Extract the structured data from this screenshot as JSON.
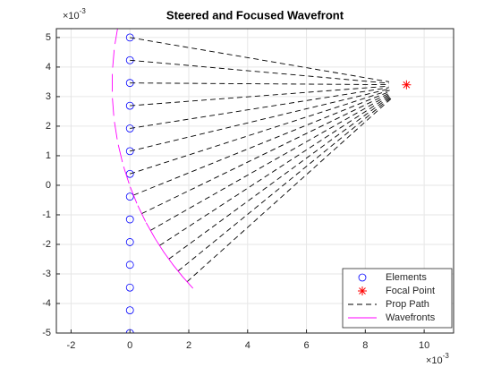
{
  "chart_data": {
    "type": "line",
    "title": "Steered and Focused Wavefront",
    "x_multiplier": "×10",
    "x_exponent": "-3",
    "y_multiplier": "×10",
    "y_exponent": "-3",
    "xlim": [
      -2.5,
      11
    ],
    "ylim": [
      -5,
      5.3
    ],
    "xticks": [
      -2,
      0,
      2,
      4,
      6,
      8,
      10
    ],
    "yticks": [
      -5,
      -4,
      -3,
      -2,
      -1,
      0,
      1,
      2,
      3,
      4,
      5
    ],
    "grid": true,
    "legend_position": "southeast",
    "series": [
      {
        "name": "Elements",
        "color": "#0000ff",
        "marker": "o",
        "x": [
          0,
          0,
          0,
          0,
          0,
          0,
          0,
          0,
          0,
          0,
          0,
          0,
          0,
          0
        ],
        "y": [
          5,
          4.231,
          3.462,
          2.692,
          1.923,
          1.154,
          0.385,
          -0.385,
          -1.154,
          -1.923,
          -2.692,
          -3.462,
          -4.231,
          -5
        ]
      },
      {
        "name": "Focal Point",
        "color": "#ff0000",
        "marker": "*",
        "x": [
          9.4
        ],
        "y": [
          3.4
        ]
      },
      {
        "name": "Prop Path",
        "color": "#000000",
        "linestyle": "dashed",
        "x": [
          0,
          8.809,
          null,
          0,
          8.802,
          null,
          0,
          8.8,
          null,
          0,
          8.802,
          null,
          0,
          8.807,
          null,
          0,
          8.816,
          null,
          0,
          8.829,
          null,
          0.123,
          8.843,
          null,
          0.4,
          8.86,
          null,
          0.699,
          8.878,
          null,
          1.008,
          8.896,
          null,
          1.323,
          8.915,
          null,
          1.636,
          8.934,
          null,
          1.943,
          8.953
        ],
        "y": [
          5,
          3.501,
          null,
          4.231,
          3.453,
          null,
          3.462,
          3.404,
          null,
          2.692,
          3.355,
          null,
          1.923,
          3.307,
          null,
          1.154,
          3.261,
          null,
          0.385,
          3.217,
          null,
          -0.335,
          3.176,
          null,
          -0.96,
          3.138,
          null,
          -1.527,
          3.104,
          null,
          -2.039,
          3.074,
          null,
          -2.496,
          3.046,
          null,
          -2.903,
          3.022,
          null,
          -3.263,
          3.0
        ]
      },
      {
        "name": "Wavefronts",
        "color": "#ff00ff",
        "linestyle": "solid",
        "x": [
          -0.408,
          -0.508,
          null,
          -0.535,
          -0.587,
          null,
          -0.598,
          -0.602,
          null,
          -0.595,
          -0.549,
          null,
          -0.526,
          -0.432,
          null,
          -0.396,
          -0.256,
          null,
          -0.214,
          -0.03,
          null,
          0.011,
          0.235,
          null,
          0.269,
          0.531,
          null,
          0.551,
          0.847,
          null,
          0.845,
          1.171,
          null,
          1.146,
          1.5,
          null,
          1.447,
          1.825,
          null,
          1.743,
          2.143
        ],
        "y": [
          5.374,
          4.782,
          null,
          4.58,
          3.982,
          null,
          3.766,
          3.166,
          null,
          2.948,
          2.35,
          null,
          2.144,
          1.552,
          null,
          1.368,
          0.784,
          null,
          0.632,
          0.06,
          null,
          -0.057,
          -0.613,
          null,
          -0.69,
          -1.23,
          null,
          -1.266,
          -1.788,
          null,
          -1.787,
          -2.291,
          null,
          -2.254,
          -2.738,
          null,
          -2.67,
          -3.136,
          null,
          -3.039,
          -3.487
        ]
      }
    ]
  }
}
